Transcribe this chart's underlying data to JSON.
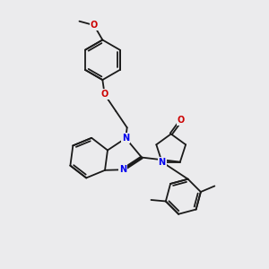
{
  "bg_color": "#ebebed",
  "bond_color": "#1a1a1a",
  "bond_lw": 1.3,
  "dbl_sep": 0.1,
  "N_color": "#0000ee",
  "O_color": "#cc0000",
  "label_fs": 7.0,
  "xlim": [
    0,
    10
  ],
  "ylim": [
    0,
    10
  ],
  "fig_w": 3.0,
  "fig_h": 3.0,
  "dpi": 100
}
